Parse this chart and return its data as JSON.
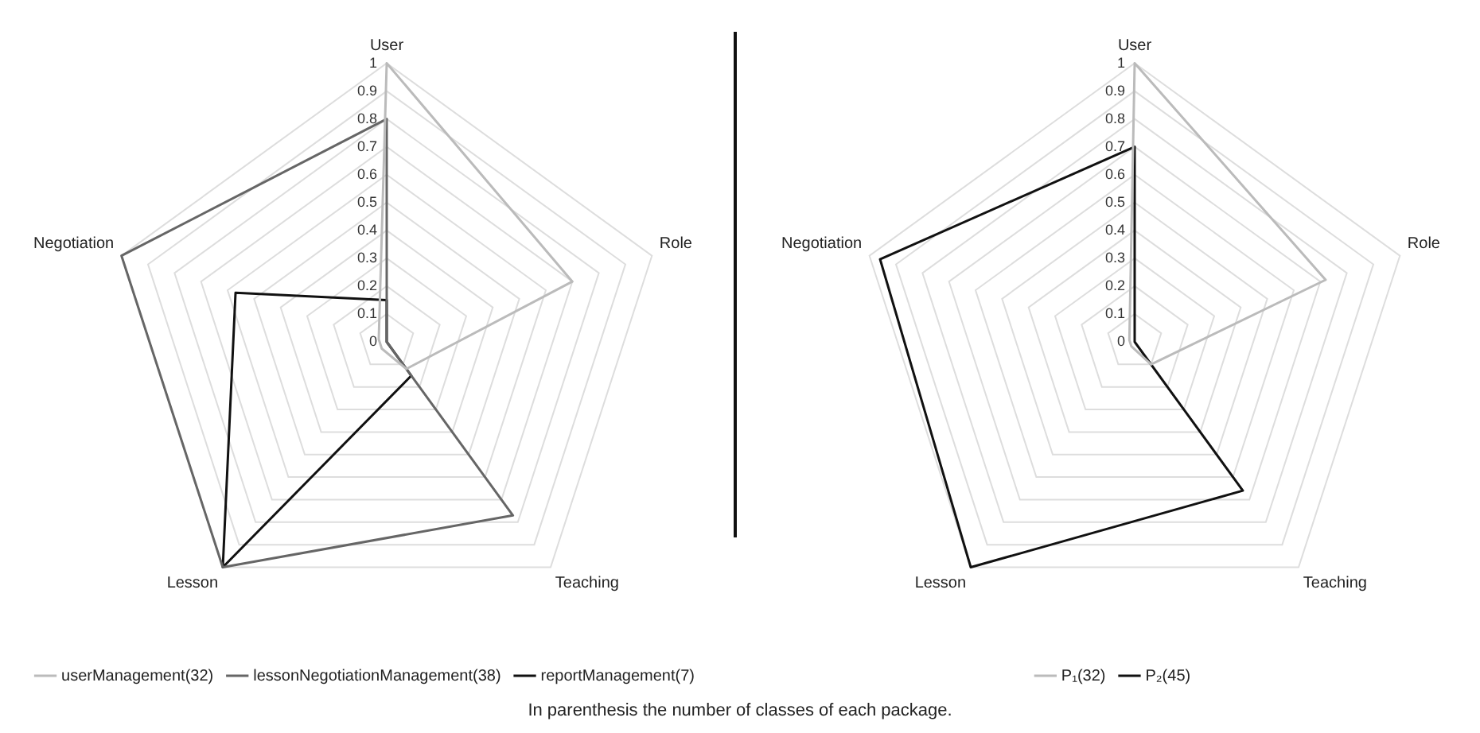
{
  "chart_data": [
    {
      "type": "radar",
      "categories": [
        "User",
        "Role",
        "Teaching",
        "Lesson",
        "Negotiation"
      ],
      "series": [
        {
          "name": "userManagement(32)",
          "color": "#bbbbbb",
          "values": [
            1,
            0.7,
            0.12,
            0.03,
            0.03
          ]
        },
        {
          "name": "lessonNegotiationManagement(38)",
          "color": "#666666",
          "values": [
            0.8,
            0,
            0.77,
            1,
            1
          ]
        },
        {
          "name": "reportManagement(7)",
          "color": "#111111",
          "values": [
            0.15,
            0,
            0.15,
            1,
            0.57
          ]
        }
      ],
      "ylim": [
        0,
        1
      ],
      "yticks": [
        0,
        0.1,
        0.2,
        0.3,
        0.4,
        0.5,
        0.6,
        0.7,
        0.8,
        0.9,
        1
      ],
      "grid": true,
      "legend": "bottom",
      "marker": "none",
      "annotations": [
        "In parenthesis the number of classes of each package."
      ]
    },
    {
      "type": "radar",
      "categories": [
        "User",
        "Role",
        "Teaching",
        "Lesson",
        "Negotiation"
      ],
      "series": [
        {
          "name": "P₁(32)",
          "color": "#bbbbbb",
          "values": [
            1,
            0.72,
            0.1,
            0.02,
            0.02
          ]
        },
        {
          "name": "P₂(45)",
          "color": "#111111",
          "values": [
            0.7,
            0,
            0.66,
            1,
            0.96
          ]
        }
      ],
      "ylim": [
        0,
        1
      ],
      "yticks": [
        0,
        0.1,
        0.2,
        0.3,
        0.4,
        0.5,
        0.6,
        0.7,
        0.8,
        0.9,
        1
      ],
      "grid": true,
      "legend": "bottom",
      "marker": "none"
    }
  ]
}
